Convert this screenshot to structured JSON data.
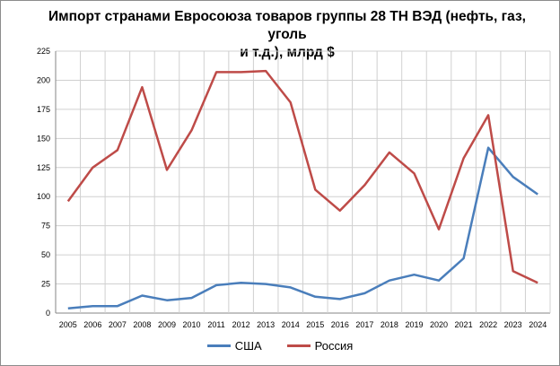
{
  "chart_data": {
    "type": "line",
    "title_line1": "Импорт странами Евросоюза товаров группы 28 ТН ВЭД (нефть, газ, уголь",
    "title_line2": "и т.д.), млрд $",
    "categories": [
      "2005",
      "2006",
      "2007",
      "2008",
      "2009",
      "2010",
      "2011",
      "2012",
      "2013",
      "2014",
      "2015",
      "2016",
      "2017",
      "2018",
      "2019",
      "2020",
      "2021",
      "2022",
      "2023",
      "2024"
    ],
    "series": [
      {
        "name": "США",
        "color": "#4a7ebb",
        "values": [
          4,
          6,
          6,
          15,
          11,
          13,
          24,
          26,
          25,
          22,
          14,
          12,
          17,
          28,
          33,
          28,
          47,
          142,
          117,
          102
        ]
      },
      {
        "name": "Россия",
        "color": "#be4b48",
        "values": [
          96,
          125,
          140,
          194,
          123,
          157,
          207,
          207,
          208,
          181,
          106,
          88,
          110,
          138,
          120,
          72,
          133,
          170,
          36,
          26
        ]
      }
    ],
    "ylim": [
      0,
      225
    ],
    "yticks": [
      0,
      25,
      50,
      75,
      100,
      125,
      150,
      175,
      200,
      225
    ],
    "grid": true,
    "legend_position": "bottom"
  }
}
